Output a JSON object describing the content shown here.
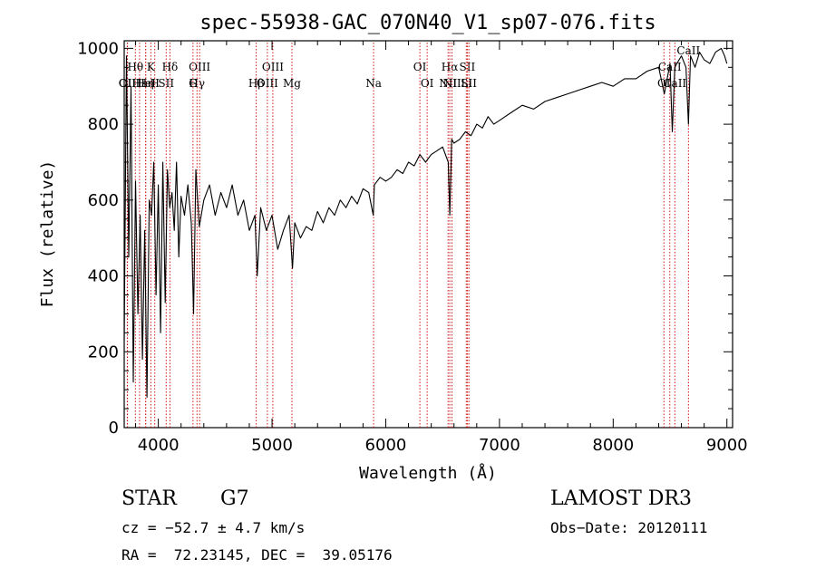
{
  "chart_data": {
    "type": "line",
    "title": "spec-55938-GAC_070N40_V1_sp07-076.fits",
    "xlabel": "Wavelength (Å)",
    "ylabel": "Flux (relative)",
    "xlim": [
      3700,
      9050
    ],
    "ylim": [
      0,
      1020
    ],
    "xticks": [
      4000,
      5000,
      6000,
      7000,
      8000,
      9000
    ],
    "yticks": [
      0,
      200,
      400,
      600,
      800,
      1000
    ],
    "series": [
      {
        "name": "flux",
        "x": [
          3700,
          3720,
          3740,
          3760,
          3780,
          3800,
          3820,
          3840,
          3860,
          3880,
          3900,
          3920,
          3940,
          3960,
          3980,
          4000,
          4020,
          4040,
          4060,
          4080,
          4100,
          4120,
          4140,
          4160,
          4180,
          4200,
          4230,
          4260,
          4290,
          4310,
          4330,
          4360,
          4400,
          4450,
          4500,
          4550,
          4600,
          4650,
          4700,
          4750,
          4800,
          4850,
          4870,
          4900,
          4950,
          5000,
          5050,
          5100,
          5150,
          5180,
          5200,
          5250,
          5300,
          5350,
          5400,
          5450,
          5500,
          5550,
          5600,
          5650,
          5700,
          5750,
          5800,
          5850,
          5890,
          5900,
          5950,
          6000,
          6050,
          6100,
          6150,
          6200,
          6250,
          6300,
          6350,
          6400,
          6450,
          6500,
          6550,
          6563,
          6580,
          6600,
          6650,
          6700,
          6750,
          6800,
          6850,
          6900,
          6950,
          7000,
          7100,
          7200,
          7300,
          7400,
          7500,
          7600,
          7700,
          7800,
          7900,
          8000,
          8100,
          8200,
          8300,
          8400,
          8450,
          8500,
          8520,
          8542,
          8560,
          8600,
          8640,
          8662,
          8680,
          8720,
          8760,
          8800,
          8850,
          8900,
          8950,
          8980,
          9000
        ],
        "values": [
          230,
          980,
          450,
          900,
          120,
          650,
          300,
          560,
          180,
          520,
          80,
          600,
          560,
          700,
          350,
          640,
          250,
          700,
          330,
          680,
          580,
          620,
          520,
          700,
          450,
          610,
          560,
          640,
          540,
          300,
          680,
          530,
          600,
          640,
          560,
          620,
          580,
          640,
          560,
          600,
          520,
          560,
          400,
          580,
          520,
          560,
          470,
          520,
          560,
          420,
          540,
          500,
          530,
          520,
          570,
          540,
          580,
          560,
          600,
          580,
          610,
          590,
          630,
          620,
          560,
          640,
          660,
          650,
          660,
          680,
          670,
          700,
          690,
          720,
          700,
          720,
          730,
          740,
          700,
          560,
          760,
          750,
          760,
          780,
          770,
          800,
          790,
          820,
          800,
          810,
          830,
          850,
          840,
          860,
          870,
          880,
          890,
          900,
          910,
          900,
          920,
          920,
          940,
          950,
          880,
          960,
          780,
          950,
          960,
          980,
          950,
          800,
          980,
          950,
          990,
          970,
          960,
          990,
          1000,
          980,
          960
        ]
      }
    ],
    "spectral_lines": [
      {
        "label": "Hθ",
        "row": 1,
        "x": 3798
      },
      {
        "label": "OII",
        "row": 2,
        "x": 3727
      },
      {
        "label": "OII",
        "row": 3,
        "x": 3729
      },
      {
        "label": "Hε",
        "row": 2,
        "x": 3835
      },
      {
        "label": "K",
        "row": 1,
        "x": 3934
      },
      {
        "label": "HeI",
        "row": 2,
        "x": 3889
      },
      {
        "label": "Hη",
        "row": 3,
        "x": 3889
      },
      {
        "label": "H",
        "row": 3,
        "x": 3969
      },
      {
        "label": "SII",
        "row": 2,
        "x": 4069
      },
      {
        "label": "Hδ",
        "row": 1,
        "x": 4102
      },
      {
        "label": "OIII",
        "row": 1,
        "x": 4363
      },
      {
        "label": "Hγ",
        "row": 2,
        "x": 4340
      },
      {
        "label": "G",
        "row": 3,
        "x": 4305
      },
      {
        "label": "Hβ",
        "row": 3,
        "x": 4861
      },
      {
        "label": "OIII",
        "row": 1,
        "x": 5007
      },
      {
        "label": "OIII",
        "row": 2,
        "x": 4959
      },
      {
        "label": "Mg",
        "row": 3,
        "x": 5175
      },
      {
        "label": "Na",
        "row": 2,
        "x": 5893
      },
      {
        "label": "OI",
        "row": 1,
        "x": 6300
      },
      {
        "label": "OI",
        "row": 3,
        "x": 6364
      },
      {
        "label": "Hα",
        "row": 1,
        "x": 6563
      },
      {
        "label": "SII",
        "row": 1,
        "x": 6717
      },
      {
        "label": "NII",
        "row": 2,
        "x": 6548
      },
      {
        "label": "Li",
        "row": 2,
        "x": 6708
      },
      {
        "label": "NII",
        "row": 3,
        "x": 6583
      },
      {
        "label": "SII",
        "row": 3,
        "x": 6731
      },
      {
        "label": "CaII",
        "row": 1,
        "x": 8498
      },
      {
        "label": "OI",
        "row": 2,
        "x": 8446
      },
      {
        "label": "CaII",
        "row": 3,
        "x": 8542
      },
      {
        "label": "CaII",
        "row": 0,
        "x": 8662
      }
    ]
  },
  "info": {
    "class": "STAR",
    "subclass": "G7",
    "survey": "LAMOST DR3",
    "cz": "cz = −52.7 ± 4.7 km/s",
    "obs_date": "Obs−Date: 20120111",
    "radec": "RA =  72.23145, DEC =  39.05176"
  }
}
